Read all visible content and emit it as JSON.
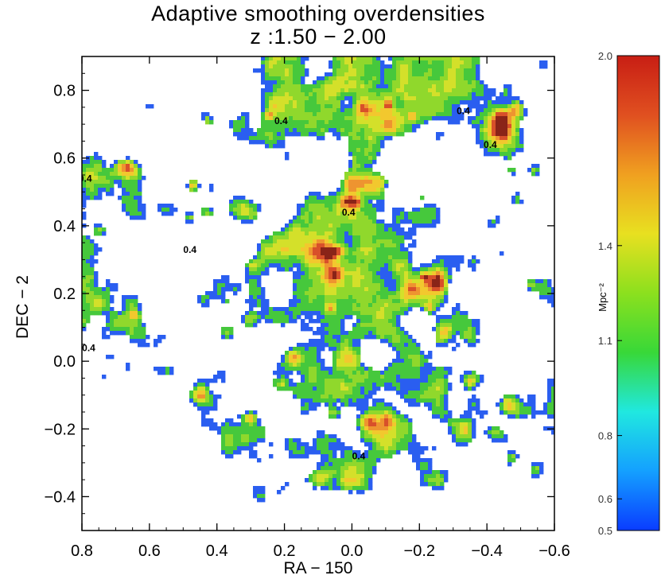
{
  "chart_data": {
    "type": "heatmap",
    "title": "Adaptive smoothing overdensities",
    "subtitle": "z :1.50 − 2.00",
    "xlabel": "RA − 150",
    "ylabel": "DEC − 2",
    "xlim": [
      0.8,
      -0.6
    ],
    "ylim": [
      -0.5,
      0.9
    ],
    "xticks": [
      0.8,
      0.6,
      0.4,
      0.2,
      0.0,
      -0.2,
      -0.4,
      -0.6
    ],
    "xtick_labels": [
      "0.8",
      "0.6",
      "0.4",
      "0.2",
      "0.0",
      "−0.2",
      "−0.4",
      "−0.6"
    ],
    "yticks": [
      0.8,
      0.6,
      0.4,
      0.2,
      0.0,
      -0.2,
      -0.4
    ],
    "ytick_labels": [
      "0.8",
      "0.6",
      "0.4",
      "0.2",
      "0.0",
      "−0.2",
      "−0.4"
    ],
    "contour_labels": [
      {
        "text": "0.4",
        "x": 0.21,
        "y": 0.7
      },
      {
        "text": "0.4",
        "x": -0.33,
        "y": 0.73
      },
      {
        "text": "0.4",
        "x": -0.41,
        "y": 0.63
      },
      {
        "text": "0.4",
        "x": 0.79,
        "y": 0.53
      },
      {
        "text": "0.4",
        "x": 0.48,
        "y": 0.32
      },
      {
        "text": "0.4",
        "x": 0.01,
        "y": 0.43
      },
      {
        "text": "0.4",
        "x": 0.78,
        "y": 0.03
      },
      {
        "text": "0.4",
        "x": -0.02,
        "y": -0.29
      }
    ],
    "grid": false,
    "colorbar": {
      "label": "Mpc⁻²",
      "range": [
        0.5,
        2.0
      ],
      "ticks": [
        0.5,
        0.6,
        0.8,
        1.1,
        1.4,
        2.0
      ],
      "tick_labels": [
        "0.5",
        "0.6",
        "0.8",
        "1.1",
        "1.4",
        "2.0"
      ],
      "colors": [
        "#0a3cff",
        "#14a0ff",
        "#20e8e0",
        "#38d838",
        "#8ce01e",
        "#e8e020",
        "#f0a020",
        "#e05020",
        "#c81e14"
      ]
    },
    "colormap": {
      "blue": "#1e5af0",
      "green": "#3cc83c",
      "yellowgreen": "#a5dc28",
      "yellow": "#f0e628",
      "orange": "#f0a028",
      "red": "#d24623",
      "darkred": "#7a1e14"
    }
  }
}
